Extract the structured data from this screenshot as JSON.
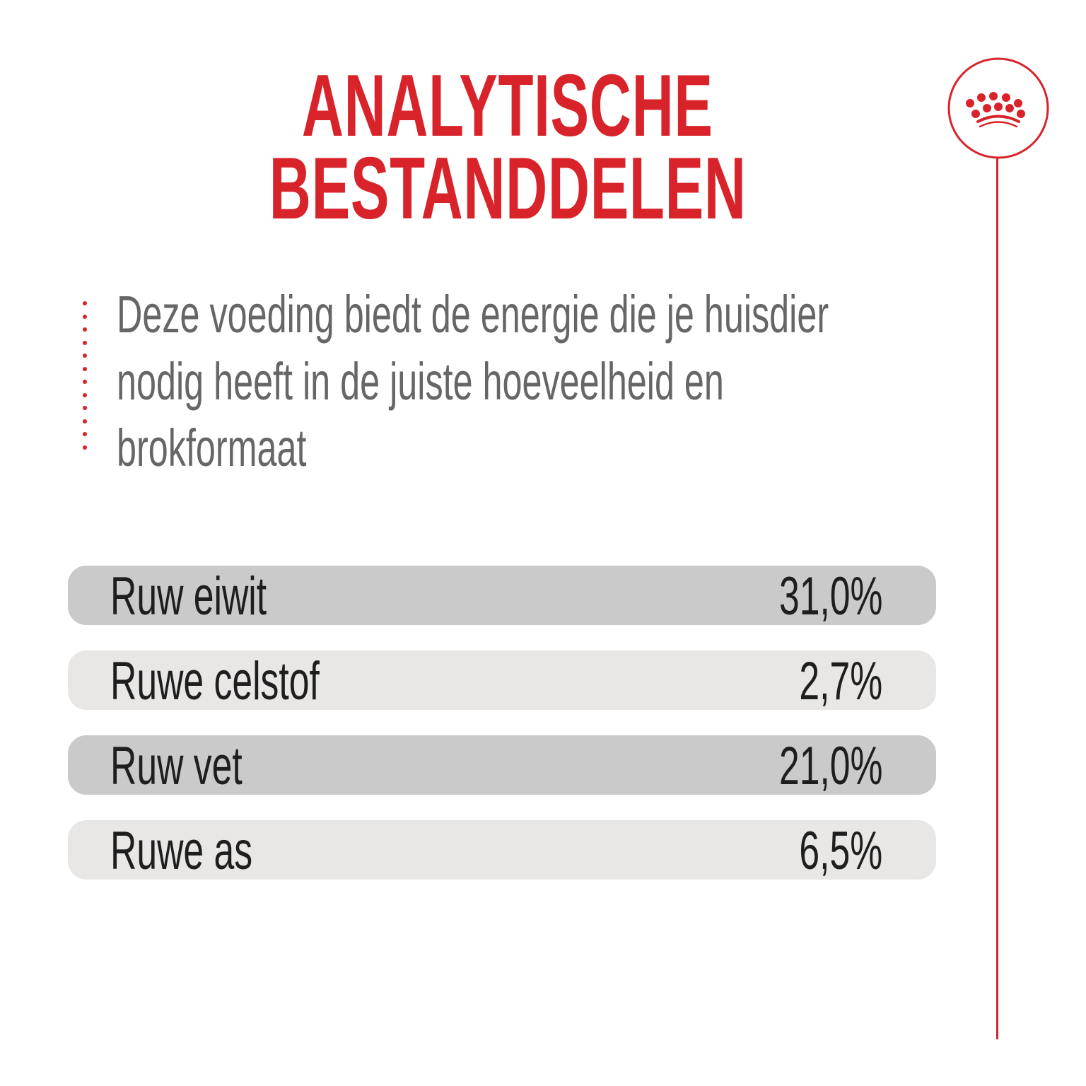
{
  "title": {
    "line1": "ANALYTISCHE",
    "line2": "BESTANDDELEN"
  },
  "description": {
    "lines": [
      "Deze voeding biedt de energie die je huisdier",
      "nodig heeft in de juiste hoeveelheid en",
      "brokformaat"
    ]
  },
  "rows": [
    {
      "label": "Ruw eiwit",
      "value": "31,0%"
    },
    {
      "label": "Ruwe celstof",
      "value": "2,7%"
    },
    {
      "label": "Ruw vet",
      "value": "21,0%"
    },
    {
      "label": "Ruwe as",
      "value": "6,5%"
    }
  ],
  "logo": {
    "icon": "crown-icon"
  },
  "colors": {
    "accent": "#d8232a",
    "row_dark": "#cbcacb",
    "row_light": "#e8e7e6",
    "text": "#666666"
  }
}
